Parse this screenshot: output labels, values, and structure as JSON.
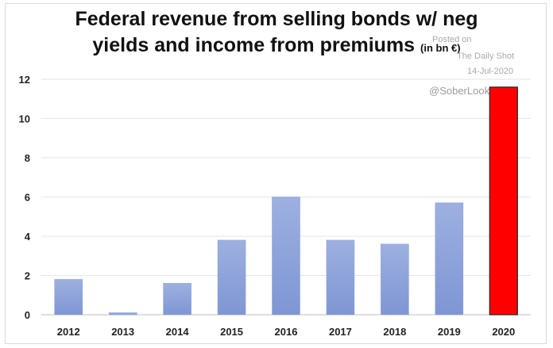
{
  "title_line1": "Federal revenue from selling bonds w/ neg",
  "title_line2": "yields and income from premiums",
  "units": "(in bn €)",
  "watermark": {
    "posted": "Posted on",
    "source": "The Daily Shot",
    "date": "14-Jul-2020",
    "handle": "@SoberLook"
  },
  "colors": {
    "bar": "#9db0e0",
    "bar_dark": "#7f96d4",
    "highlight": "#ff0000",
    "grid": "#e6e6e6"
  },
  "chart_data": {
    "type": "bar",
    "categories": [
      "2012",
      "2013",
      "2014",
      "2015",
      "2016",
      "2017",
      "2018",
      "2019",
      "2020"
    ],
    "values": [
      1.8,
      0.1,
      1.6,
      3.8,
      6.0,
      3.8,
      3.6,
      5.7,
      11.6
    ],
    "highlight_category": "2020",
    "title": "Federal revenue from selling bonds w/ neg yields and income from premiums (in bn €)",
    "xlabel": "",
    "ylabel": "",
    "ylim": [
      0,
      12
    ],
    "yticks": [
      0,
      2,
      4,
      6,
      8,
      10,
      12
    ],
    "grid": true,
    "legend": "none"
  }
}
